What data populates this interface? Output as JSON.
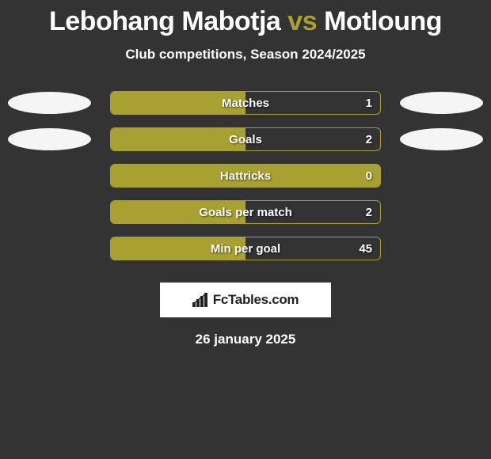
{
  "title": {
    "player1": "Lebohang Mabotja",
    "vs": "vs",
    "player2": "Motloung",
    "player1_color": "#ffffff",
    "vs_color": "#a8a030",
    "player2_color": "#ffffff"
  },
  "subtitle": "Club competitions, Season 2024/2025",
  "chart": {
    "bar_border_color": "#a8a030",
    "bar_fill_color": "#a8a030",
    "background_color": "#333333",
    "text_color": "#ffffff",
    "rows": [
      {
        "label": "Matches",
        "value": "1",
        "fill_pct": 50,
        "avatar_left": true,
        "avatar_right": true
      },
      {
        "label": "Goals",
        "value": "2",
        "fill_pct": 50,
        "avatar_left": true,
        "avatar_right": true
      },
      {
        "label": "Hattricks",
        "value": "0",
        "fill_pct": 100,
        "avatar_left": false,
        "avatar_right": false
      },
      {
        "label": "Goals per match",
        "value": "2",
        "fill_pct": 50,
        "avatar_left": false,
        "avatar_right": false
      },
      {
        "label": "Min per goal",
        "value": "45",
        "fill_pct": 50,
        "avatar_left": false,
        "avatar_right": false
      }
    ]
  },
  "logo": {
    "text": "FcTables.com"
  },
  "date": "26 january 2025"
}
